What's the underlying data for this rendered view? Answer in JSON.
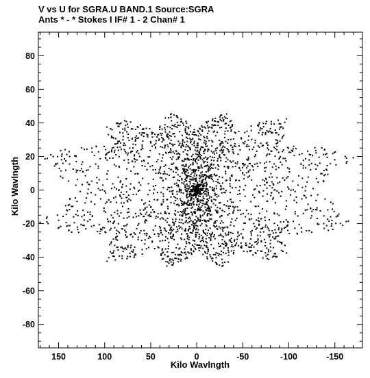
{
  "chart_data": {
    "type": "scatter",
    "title_line1": "V vs U for SGRA.U BAND.1   Source:SGRA",
    "title_line2": "Ants * - *    Stokes I  IF# 1 - 2  Chan# 1",
    "xlabel": "Kilo Wavlngth",
    "ylabel": "Kilo Wavlngth",
    "x_axis_reversed": true,
    "xlim": [
      172,
      -180
    ],
    "ylim": [
      -94,
      94
    ],
    "xticks": [
      150,
      100,
      50,
      0,
      -50,
      -100,
      -150
    ],
    "xtick_labels": [
      "150",
      "100",
      "50",
      "0",
      "-50",
      "-100",
      "-150"
    ],
    "yticks": [
      80,
      60,
      40,
      20,
      0,
      -20,
      -40,
      -60,
      -80
    ],
    "ytick_labels": [
      "80",
      "60",
      "40",
      "20",
      "0",
      "-20",
      "-40",
      "-60",
      "-80"
    ],
    "grid": false,
    "marker": "dot",
    "marker_color": "#000000",
    "uv_tracks": {
      "description_note": "dense Fourier-plane coverage, symmetric pairs (u,v) and (-u,-v)",
      "arms": [
        {
          "angle_deg": 70,
          "max_radius": 95
        },
        {
          "angle_deg": 110,
          "max_radius": 95
        },
        {
          "angle_deg": 12,
          "max_radius": 175
        },
        {
          "angle_deg": 168,
          "max_radius": 175
        },
        {
          "angle_deg": 38,
          "max_radius": 130
        },
        {
          "angle_deg": 142,
          "max_radius": 130
        }
      ],
      "point_count": 2600
    }
  }
}
